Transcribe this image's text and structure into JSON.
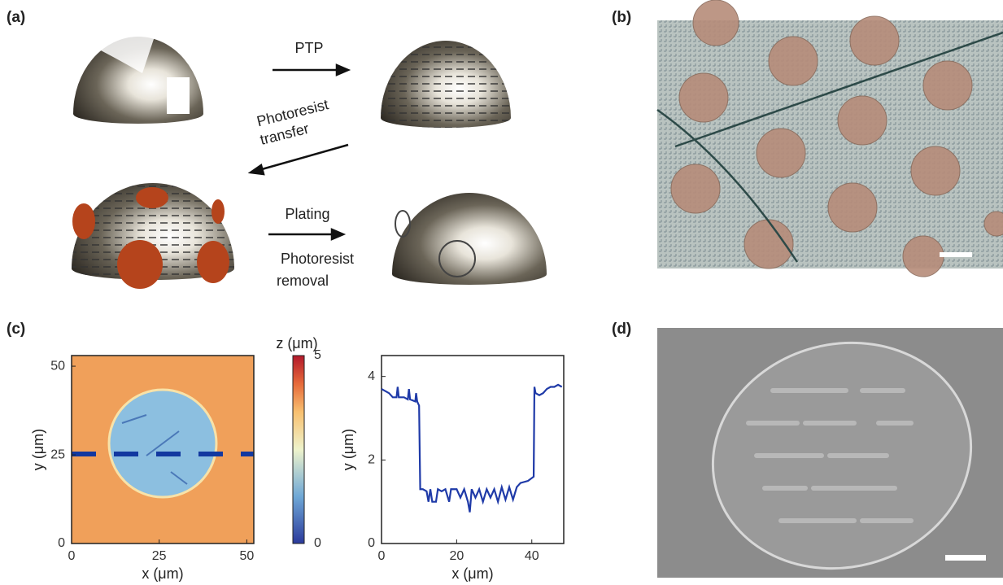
{
  "panels": {
    "a": {
      "label": "(a)",
      "texts": [
        "PTP",
        "Photoresist",
        "transfer",
        "Plating",
        "Photoresist",
        "removal"
      ]
    },
    "b": {
      "label": "(b)"
    },
    "c": {
      "label": "(c)"
    },
    "d": {
      "label": "(d)"
    }
  },
  "chart_data": [
    {
      "type": "heatmap",
      "x_label": "x (μm)",
      "y_label": "y (μm)",
      "xlim": [
        0,
        52
      ],
      "ylim": [
        0,
        53
      ],
      "xticks": [
        0,
        25,
        50
      ],
      "yticks": [
        0,
        25,
        50
      ],
      "colorbar_label": "z (μm)",
      "clim": [
        0,
        5
      ],
      "cticks": [
        0,
        5
      ]
    },
    {
      "type": "line",
      "x_label": "x (μm)",
      "y_label": "y (μm)",
      "xlim": [
        0,
        48.5
      ],
      "ylim": [
        0,
        4.5
      ],
      "xticks": [
        0,
        20,
        40
      ],
      "yticks": [
        0,
        2,
        4
      ],
      "x": [
        0,
        2,
        3,
        4,
        4.3,
        4.6,
        6,
        7,
        7.3,
        7.6,
        9,
        9.2,
        9.5,
        10,
        10.3,
        11,
        12,
        12.5,
        13,
        13.5,
        14.5,
        15,
        16,
        17,
        18,
        18.5,
        20,
        21,
        22,
        23,
        23.5,
        24,
        25,
        26,
        27,
        28,
        29,
        30,
        31,
        32,
        33,
        34,
        35,
        36,
        37,
        39,
        40.5,
        40.7,
        41,
        42,
        43,
        44,
        45,
        46,
        47,
        48
      ],
      "series": [
        {
          "color": "#1f3aa8",
          "values": [
            3.7,
            3.6,
            3.5,
            3.5,
            3.75,
            3.5,
            3.5,
            3.45,
            3.7,
            3.45,
            3.4,
            3.6,
            3.4,
            3.3,
            1.3,
            1.3,
            1.25,
            1.0,
            1.3,
            1.0,
            1.0,
            1.3,
            1.25,
            1.3,
            1.0,
            1.3,
            1.3,
            1.1,
            1.3,
            1.0,
            0.75,
            1.3,
            1.1,
            1.3,
            1.0,
            1.3,
            1.1,
            1.3,
            1.0,
            1.35,
            1.05,
            1.35,
            1.05,
            1.35,
            1.45,
            1.5,
            1.6,
            3.75,
            3.6,
            3.55,
            3.6,
            3.7,
            3.75,
            3.75,
            3.8,
            3.75
          ]
        }
      ]
    }
  ]
}
